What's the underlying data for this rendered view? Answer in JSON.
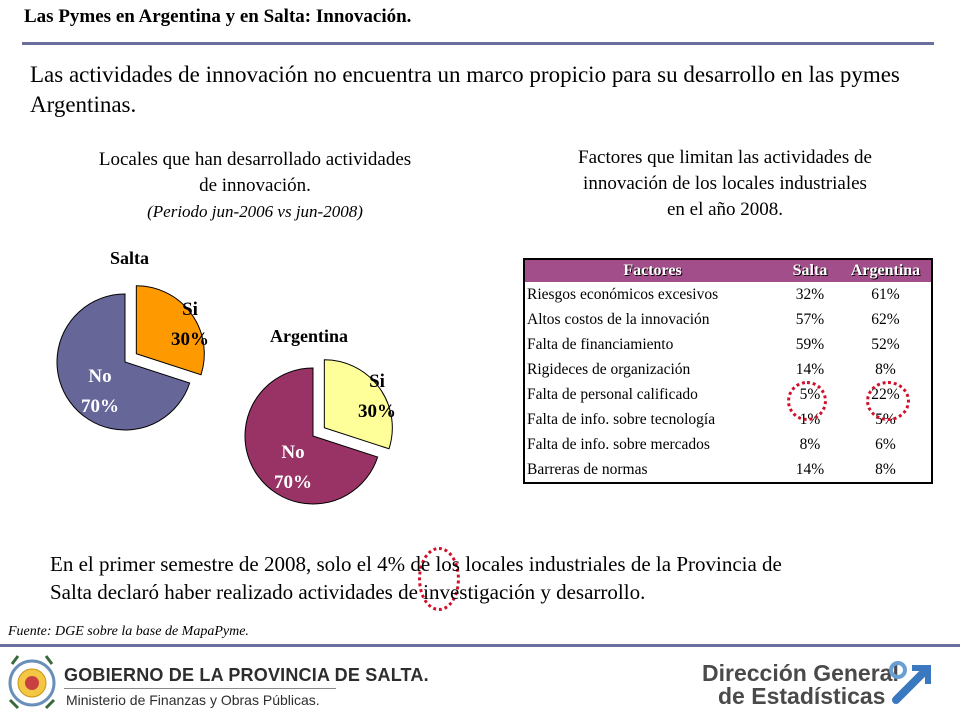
{
  "header": {
    "title": "Las Pymes en Argentina y en Salta: Innovación."
  },
  "headline": "Las actividades de innovación no encuentra un marco propicio para su desarrollo en las pymes Argentinas.",
  "left_panel": {
    "title_line1": "Locales que han desarrollado actividades",
    "title_line2": "de innovación.",
    "subtitle": "(Periodo jun-2006 vs jun-2008)"
  },
  "right_panel": {
    "title_line1": "Factores que limitan las actividades de",
    "title_line2": "innovación de los locales industriales",
    "title_line3": "en el año 2008."
  },
  "chart_data": [
    {
      "type": "pie",
      "title": "Salta",
      "slices": [
        {
          "label": "Si",
          "value": 30,
          "value_label": "30%",
          "color": "#ff9900",
          "exploded": true
        },
        {
          "label": "No",
          "value": 70,
          "value_label": "70%",
          "color": "#666699",
          "exploded": false
        }
      ]
    },
    {
      "type": "pie",
      "title": "Argentina",
      "slices": [
        {
          "label": "Si",
          "value": 30,
          "value_label": "30%",
          "color": "#ffff99",
          "exploded": true
        },
        {
          "label": "No",
          "value": 70,
          "value_label": "70%",
          "color": "#993366",
          "exploded": false
        }
      ]
    },
    {
      "type": "table",
      "columns": [
        "Factores",
        "Salta",
        "Argentina"
      ],
      "rows": [
        [
          "Riesgos económicos excesivos",
          "32%",
          "61%"
        ],
        [
          "Altos costos de la innovación",
          "57%",
          "62%"
        ],
        [
          "Falta de financiamiento",
          "59%",
          "52%"
        ],
        [
          "Rigideces de organización",
          "14%",
          "8%"
        ],
        [
          "Falta de personal calificado",
          "5%",
          "22%"
        ],
        [
          "Falta de info. sobre tecnología",
          "1%",
          "5%"
        ],
        [
          "Falta de info. sobre mercados",
          "8%",
          "6%"
        ],
        [
          "Barreras de normas",
          "14%",
          "8%"
        ]
      ],
      "header_color": "#a24e8a",
      "highlighted_cells": [
        "Falta de personal calificado|Salta",
        "Falta de personal calificado|Argentina"
      ]
    }
  ],
  "bottom_text": {
    "line1": "En el primer semestre de 2008, solo el 4% de los locales industriales de la Provincia de",
    "line2": "Salta declaró haber realizado actividades de investigación y desarrollo."
  },
  "source": "Fuente: DGE  sobre la base de MapaPyme.",
  "footer": {
    "gov_name": "GOBIERNO DE LA PROVINCIA DE SALTA.",
    "ministry": "Ministerio de Finanzas y Obras Públicas.",
    "dge_line1": "Dirección General",
    "dge_line2": "de Estadísticas"
  },
  "colors": {
    "rule": "#6b6f9e",
    "highlight_circle": "#d0102a"
  }
}
